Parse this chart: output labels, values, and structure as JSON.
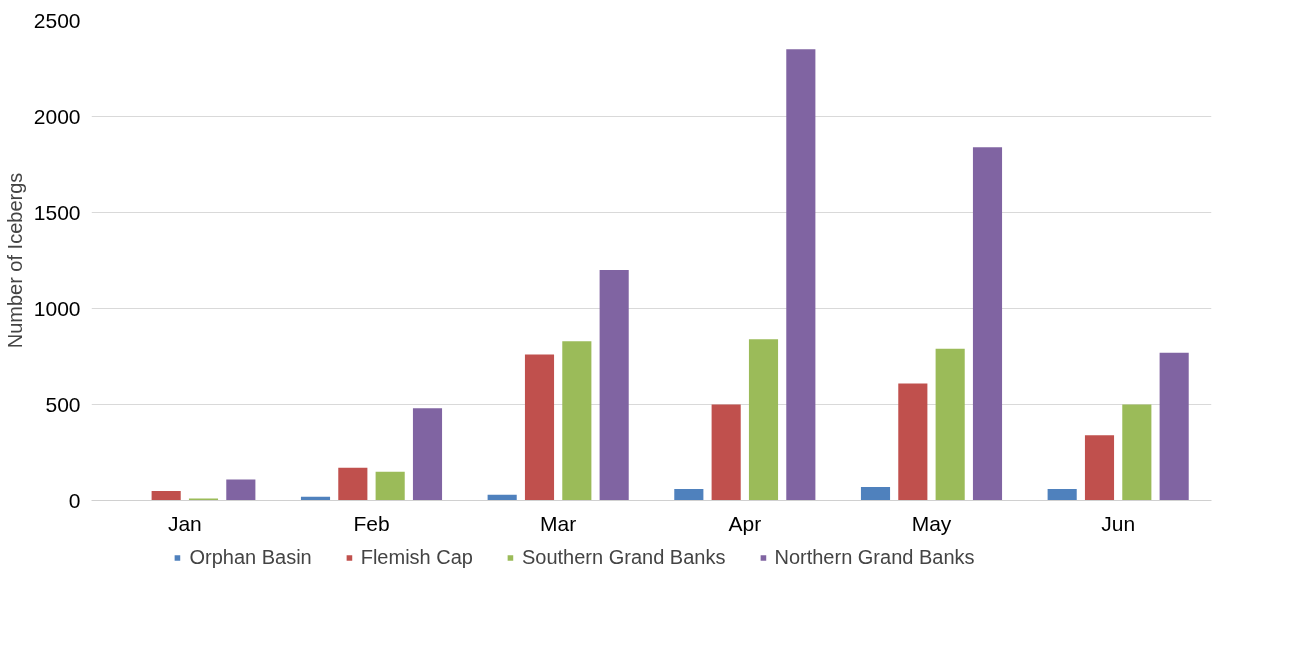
{
  "chart_data": {
    "type": "bar",
    "ylabel": "Number of Icebergs",
    "categories": [
      "Jan",
      "Feb",
      "Mar",
      "Apr",
      "May",
      "Jun"
    ],
    "series": [
      {
        "name": "Orphan Basin",
        "color": "#4f81bd",
        "values": [
          0,
          20,
          30,
          60,
          70,
          60
        ]
      },
      {
        "name": "Flemish Cap",
        "color": "#c0504d",
        "values": [
          50,
          170,
          760,
          500,
          610,
          340
        ]
      },
      {
        "name": "Southern Grand Banks",
        "color": "#9bbb59",
        "values": [
          10,
          150,
          830,
          840,
          790,
          500
        ]
      },
      {
        "name": "Northern Grand Banks",
        "color": "#8064a2",
        "values": [
          110,
          480,
          1200,
          2350,
          1840,
          770
        ]
      }
    ],
    "ylim": [
      0,
      2500
    ],
    "yticks": [
      0,
      500,
      1000,
      1500,
      2000,
      2500
    ],
    "grid": "y",
    "legend": "bottom"
  }
}
